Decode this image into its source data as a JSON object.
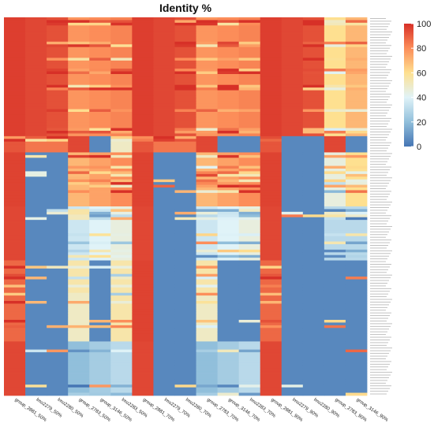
{
  "chart_data": {
    "type": "heatmap",
    "title": "Identity %",
    "columns": [
      "group_2881_50%",
      "lmo2279_50%",
      "lmo2280_50%",
      "group_2783_50%",
      "group_3146_50%",
      "lmo2283_50%",
      "group_2881_70%",
      "lmo2279_70%",
      "lmo2280_70%",
      "group_2783_70%",
      "group_3146_70%",
      "lmo2283_70%",
      "group_2881_90%",
      "lmo2279_90%",
      "lmo2280_90%",
      "group_2783_90%",
      "group_3146_90%"
    ],
    "row_count": 140,
    "row_labels_note": "",
    "row_blocks": [
      {
        "rows": 44,
        "values": [
          97,
          95,
          93,
          78,
          80,
          82,
          97,
          95,
          93,
          78,
          80,
          82,
          97,
          95,
          93,
          60,
          70
        ]
      },
      {
        "rows": 6,
        "values": [
          92,
          85,
          85,
          95,
          5,
          50,
          92,
          85,
          85,
          95,
          5,
          5,
          92,
          5,
          5,
          95,
          5
        ]
      },
      {
        "rows": 20,
        "values": [
          96,
          5,
          5,
          70,
          75,
          80,
          96,
          5,
          5,
          70,
          75,
          80,
          96,
          5,
          5,
          45,
          60
        ]
      },
      {
        "rows": 20,
        "values": [
          95,
          5,
          5,
          35,
          40,
          45,
          95,
          5,
          5,
          35,
          40,
          45,
          95,
          5,
          5,
          30,
          30
        ]
      },
      {
        "rows": 12,
        "values": [
          88,
          5,
          5,
          55,
          5,
          55,
          96,
          5,
          5,
          55,
          5,
          5,
          88,
          5,
          5,
          5,
          5
        ]
      },
      {
        "rows": 18,
        "values": [
          88,
          5,
          5,
          50,
          5,
          55,
          96,
          5,
          5,
          50,
          5,
          5,
          88,
          5,
          5,
          5,
          5
        ]
      },
      {
        "rows": 20,
        "values": [
          95,
          5,
          5,
          20,
          25,
          30,
          95,
          5,
          5,
          20,
          25,
          30,
          95,
          5,
          5,
          5,
          5
        ]
      }
    ],
    "legend": {
      "position": "top-right",
      "min": 0,
      "max": 100,
      "ticks": [
        "100",
        "80",
        "60",
        "40",
        "20",
        "0"
      ],
      "colors": [
        "#4575b4",
        "#91bfdb",
        "#e0f3f8",
        "#fee090",
        "#fc8d59",
        "#d73027"
      ]
    }
  }
}
